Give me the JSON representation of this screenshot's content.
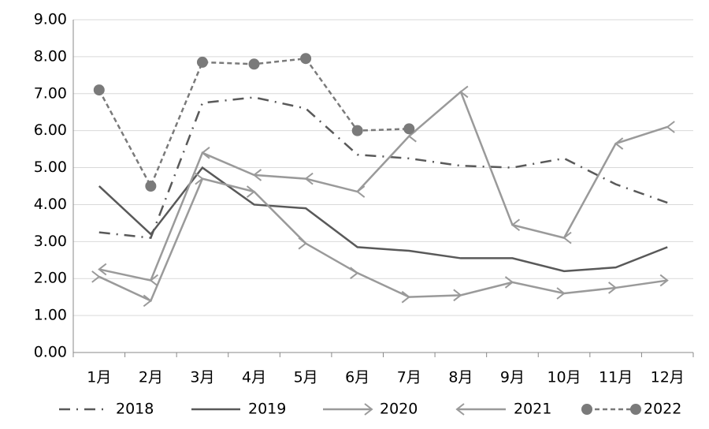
{
  "chart_data": {
    "type": "line",
    "categories": [
      "1月",
      "2月",
      "3月",
      "4月",
      "5月",
      "6月",
      "7月",
      "8月",
      "9月",
      "10月",
      "11月",
      "12月"
    ],
    "series": [
      {
        "name": "2018",
        "color": "#595959",
        "dash": "dashdot",
        "marker": "none",
        "values": [
          3.25,
          3.1,
          6.75,
          6.9,
          6.6,
          5.35,
          5.25,
          5.05,
          5.0,
          5.25,
          4.55,
          4.05
        ]
      },
      {
        "name": "2019",
        "color": "#595959",
        "dash": "solid",
        "marker": "none",
        "values": [
          4.5,
          3.2,
          5.0,
          4.0,
          3.9,
          2.85,
          2.75,
          2.55,
          2.55,
          2.2,
          2.3,
          2.85
        ]
      },
      {
        "name": "2020",
        "color": "#9a9a9a",
        "dash": "solid",
        "marker": "arrow-right",
        "values": [
          2.05,
          1.4,
          4.7,
          4.35,
          2.95,
          2.15,
          1.5,
          1.55,
          1.9,
          1.6,
          1.75,
          1.95
        ]
      },
      {
        "name": "2021",
        "color": "#9a9a9a",
        "dash": "solid",
        "marker": "arrow-left",
        "values": [
          2.25,
          1.95,
          5.4,
          4.8,
          4.7,
          4.35,
          5.85,
          7.05,
          3.45,
          3.1,
          5.65,
          6.1
        ]
      },
      {
        "name": "2022",
        "color": "#7a7a7a",
        "dash": "dashed",
        "marker": "circle",
        "values": [
          7.1,
          4.5,
          7.85,
          7.8,
          7.95,
          6.0,
          6.05,
          null,
          null,
          null,
          null,
          null
        ]
      }
    ],
    "ylim": [
      0,
      9
    ],
    "yticks": [
      {
        "value": 0,
        "label": "0.00"
      },
      {
        "value": 1,
        "label": "1.00"
      },
      {
        "value": 2,
        "label": "2.00"
      },
      {
        "value": 3,
        "label": "3.00"
      },
      {
        "value": 4,
        "label": "4.00"
      },
      {
        "value": 5,
        "label": "5.00"
      },
      {
        "value": 6,
        "label": "6.00"
      },
      {
        "value": 7,
        "label": "7.00"
      },
      {
        "value": 8,
        "label": "8.00"
      },
      {
        "value": 9,
        "label": "9.00"
      }
    ],
    "grid": true,
    "legend": "bottom"
  }
}
